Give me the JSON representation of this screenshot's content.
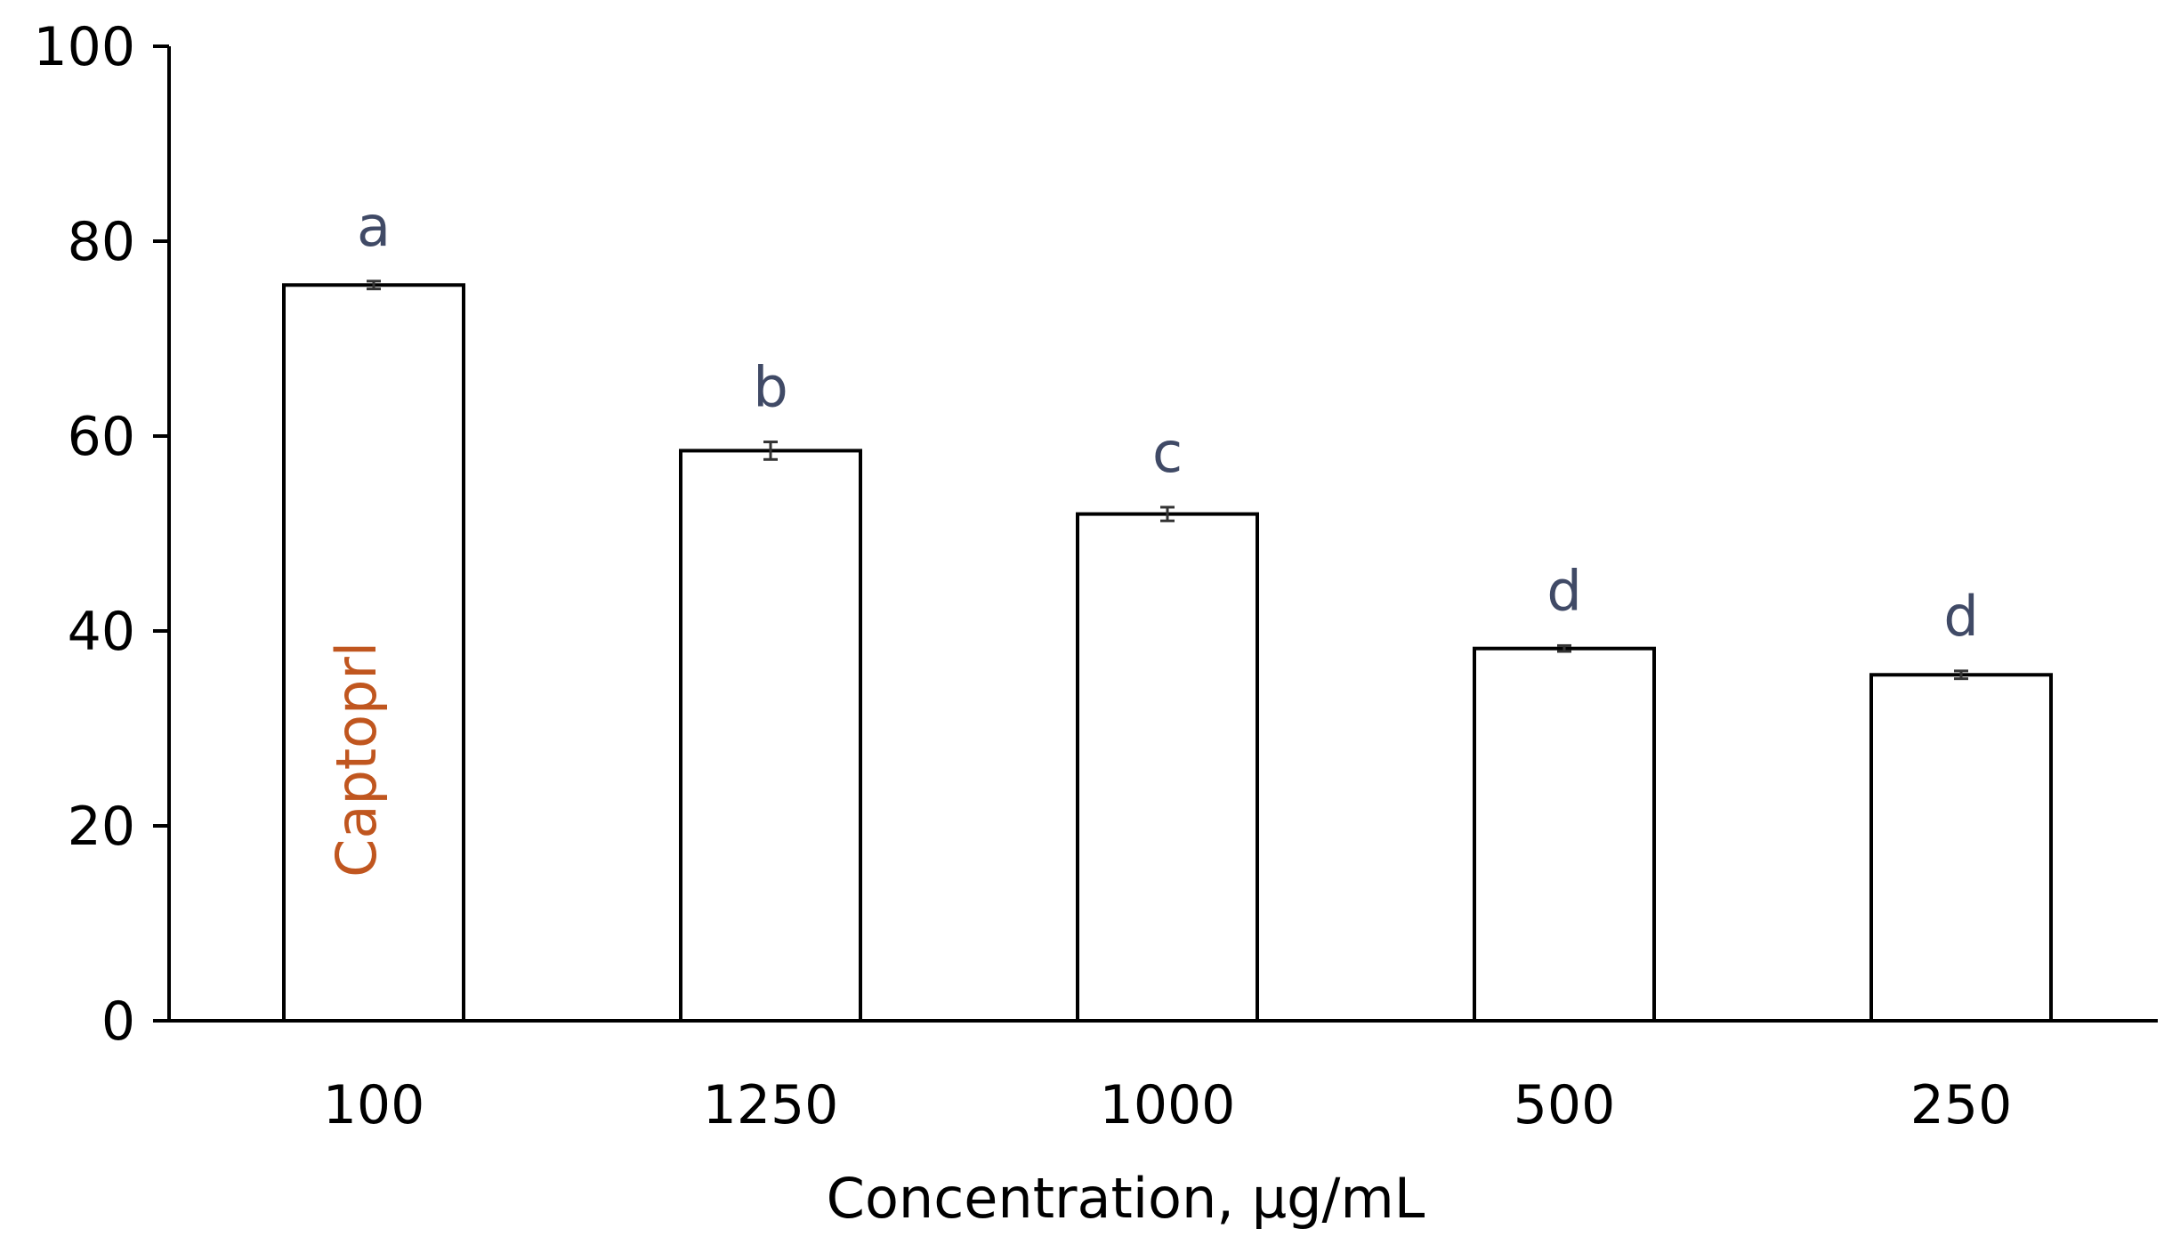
{
  "chart_data": {
    "type": "bar",
    "title": "",
    "xlabel": "Concentration, µg/mL",
    "ylabel": "",
    "categories": [
      "100",
      "1250",
      "1000",
      "500",
      "250"
    ],
    "values": [
      75.5,
      58.5,
      52.0,
      38.2,
      35.5
    ],
    "errors": [
      0.4,
      0.9,
      0.7,
      0.3,
      0.4
    ],
    "significance_letters": [
      "a",
      "b",
      "c",
      "d",
      "d"
    ],
    "annotations": [
      {
        "bar_index": 0,
        "text": "Captoprl",
        "color": "#c0561f"
      }
    ],
    "ylim": [
      0,
      100
    ],
    "yticks": [
      0,
      20,
      40,
      60,
      80,
      100
    ],
    "grid": false,
    "legend": "none",
    "bar_fill": "#ffffff",
    "bar_stroke": "#000000",
    "letter_color": "#404a66"
  }
}
